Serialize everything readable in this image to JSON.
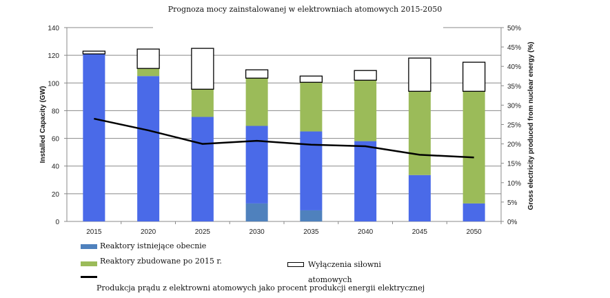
{
  "chart_data": {
    "type": "bar",
    "stacked": true,
    "title": "Prognoza mocy zainstalowanej w elektrowniach atomowych 2015-2050",
    "categories": [
      "2015",
      "2020",
      "2025",
      "2030",
      "2035",
      "2040",
      "2045",
      "2050"
    ],
    "ylabel": "Installed Capacity (GW)",
    "ylim": [
      0,
      140
    ],
    "yticks": [
      "0",
      "20",
      "40",
      "60",
      "80",
      "100",
      "120",
      "140"
    ],
    "y2label": "Gross electricity produced from nuclear energy (%)",
    "y2lim": [
      0,
      50
    ],
    "y2ticks": [
      "0%",
      "5%",
      "10%",
      "15%",
      "20%",
      "25%",
      "30%",
      "35%",
      "40%",
      "45%",
      "50%"
    ],
    "grid": true,
    "series": [
      {
        "name": "Reaktory istniejące obecnie",
        "color": "#4f81bd",
        "values": [
          0,
          0,
          0,
          13,
          8,
          0,
          0,
          0
        ]
      },
      {
        "color": "#4a6ae8",
        "values": [
          121,
          105,
          75.5,
          56,
          57,
          58,
          33.5,
          13
        ]
      },
      {
        "name": "Reaktory zbudowane po 2015 r.",
        "color": "#9bbb59",
        "values": [
          0,
          5.5,
          20,
          34.5,
          35.5,
          44,
          60.5,
          81
        ]
      },
      {
        "name": "Wyłączenia siłowni atomowych",
        "color": "#ffffff",
        "values": [
          2,
          14,
          29.5,
          6,
          4.5,
          7,
          24,
          21
        ]
      }
    ],
    "line": {
      "name": "Produkcja prądu z elektrowni atomowych jako procent produkcji energii elektrycznej",
      "axis": "right",
      "color": "#000000",
      "values": [
        26.5,
        23.5,
        20,
        20.8,
        19.8,
        19.4,
        17.2,
        16.5
      ]
    },
    "legend": "bottom"
  }
}
